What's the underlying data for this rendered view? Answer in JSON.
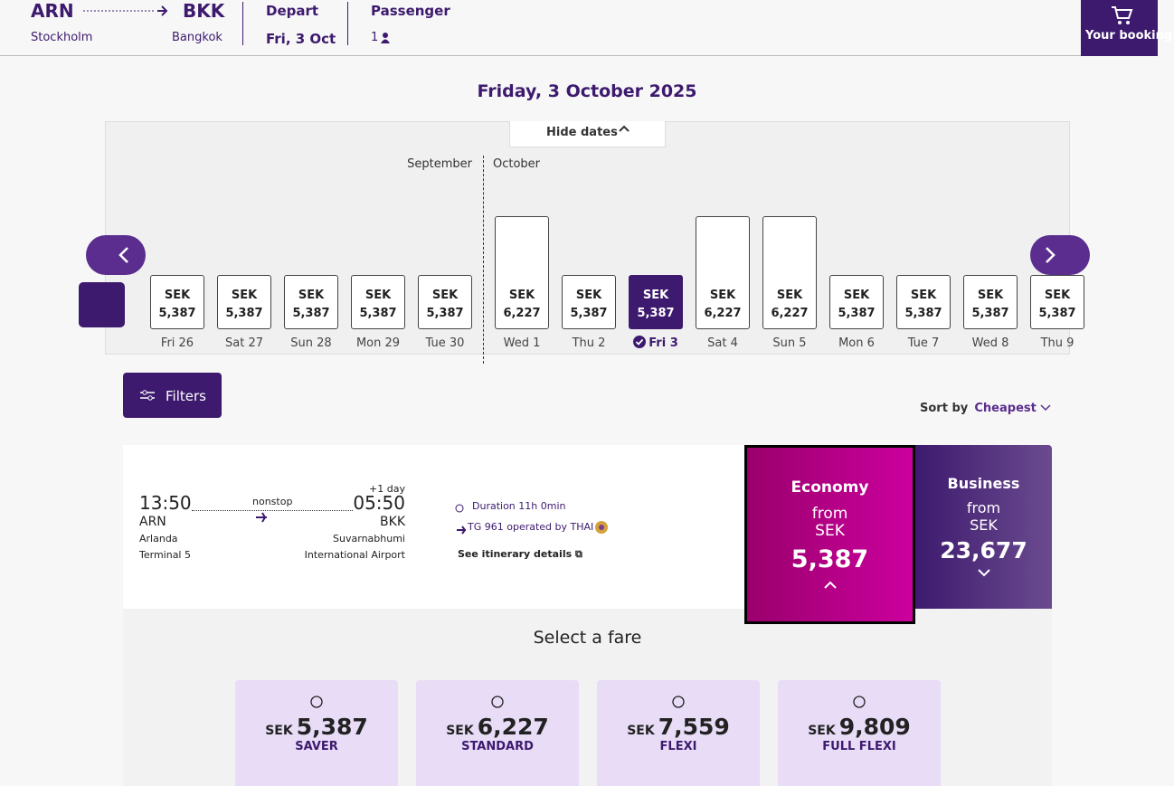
{
  "header": {
    "origin": {
      "code": "ARN",
      "city": "Stockholm"
    },
    "destination": {
      "code": "BKK",
      "city": "Bangkok"
    },
    "depart": {
      "label": "Depart",
      "value": "Fri, 3 Oct"
    },
    "passenger": {
      "label": "Passenger",
      "value": "1"
    },
    "cart": "Your booking"
  },
  "date_heading": "Friday, 3 October 2025",
  "hide_dates": "Hide dates",
  "months": [
    "September",
    "October"
  ],
  "dates": [
    {
      "currency": "SEK",
      "price": "5,387",
      "day": "Fri 26",
      "selected": false
    },
    {
      "currency": "SEK",
      "price": "5,387",
      "day": "Sat 27",
      "selected": false
    },
    {
      "currency": "SEK",
      "price": "5,387",
      "day": "Sun 28",
      "selected": false
    },
    {
      "currency": "SEK",
      "price": "5,387",
      "day": "Mon 29",
      "selected": false
    },
    {
      "currency": "SEK",
      "price": "5,387",
      "day": "Tue 30",
      "selected": false
    },
    {
      "currency": "SEK",
      "price": "6,227",
      "day": "Wed 1",
      "selected": false
    },
    {
      "currency": "SEK",
      "price": "5,387",
      "day": "Thu 2",
      "selected": false
    },
    {
      "currency": "SEK",
      "price": "5,387",
      "day": "Fri 3",
      "selected": true
    },
    {
      "currency": "SEK",
      "price": "6,227",
      "day": "Sat 4",
      "selected": false
    },
    {
      "currency": "SEK",
      "price": "6,227",
      "day": "Sun 5",
      "selected": false
    },
    {
      "currency": "SEK",
      "price": "5,387",
      "day": "Mon 6",
      "selected": false
    },
    {
      "currency": "SEK",
      "price": "5,387",
      "day": "Tue 7",
      "selected": false
    },
    {
      "currency": "SEK",
      "price": "5,387",
      "day": "Wed 8",
      "selected": false
    },
    {
      "currency": "SEK",
      "price": "5,387",
      "day": "Thu 9",
      "selected": false
    }
  ],
  "filters": "Filters",
  "sort": {
    "label": "Sort by",
    "value": "Cheapest"
  },
  "flight": {
    "departure": {
      "time": "13:50",
      "code": "ARN",
      "airport": "Arlanda",
      "terminal": "Terminal 5"
    },
    "stops": "nonstop",
    "day_offset": "+1 day",
    "arrival": {
      "time": "05:50",
      "code": "BKK",
      "airport": "Suvarnabhumi",
      "terminal": "International Airport"
    },
    "duration": "Duration 11h 0min",
    "operator": "TG 961 operated by THAI",
    "details": "See itinerary details"
  },
  "cabins": [
    {
      "name": "Economy",
      "from": "from",
      "currency": "SEK",
      "price": "5,387"
    },
    {
      "name": "Business",
      "from": "from",
      "currency": "SEK",
      "price": "23,677"
    }
  ],
  "select_fare": "Select a fare",
  "fares": [
    {
      "currency": "SEK",
      "price": "5,387",
      "name": "SAVER"
    },
    {
      "currency": "SEK",
      "price": "6,227",
      "name": "STANDARD"
    },
    {
      "currency": "SEK",
      "price": "7,559",
      "name": "FLEXI"
    },
    {
      "currency": "SEK",
      "price": "9,809",
      "name": "FULL FLEXI"
    }
  ]
}
